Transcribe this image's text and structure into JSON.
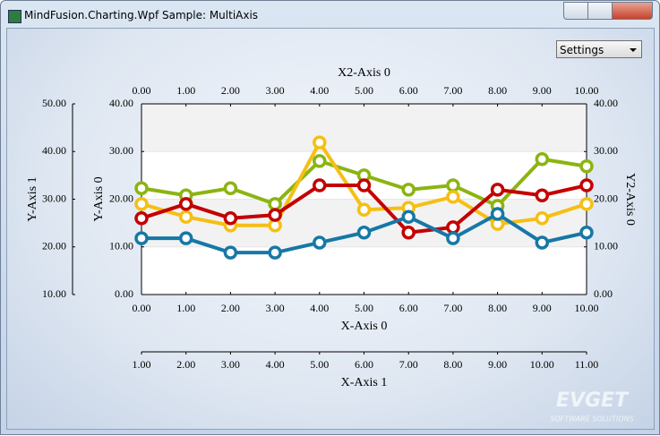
{
  "window": {
    "title": "MindFusion.Charting.Wpf Sample: MultiAxis"
  },
  "settings": {
    "label": "Settings"
  },
  "watermark": {
    "brand": "EVGET",
    "tagline": "SOFTWARE SOLUTIONS"
  },
  "chart_data": {
    "type": "line",
    "x": [
      0,
      1,
      2,
      3,
      4,
      5,
      6,
      7,
      8,
      9,
      10
    ],
    "series": [
      {
        "color": "#8cb411",
        "values": [
          22.3,
          20.8,
          22.3,
          19.0,
          28.0,
          25.0,
          22.0,
          22.9,
          18.6,
          28.4,
          26.9
        ]
      },
      {
        "color": "#f5bf14",
        "values": [
          19.0,
          16.3,
          14.5,
          14.5,
          31.9,
          17.8,
          18.2,
          20.5,
          14.8,
          16.0,
          19.0
        ]
      },
      {
        "color": "#c40000",
        "values": [
          16.0,
          19.0,
          16.0,
          16.7,
          22.9,
          22.9,
          13.0,
          14.1,
          22.0,
          20.8,
          22.9
        ]
      },
      {
        "color": "#1678a6",
        "values": [
          11.8,
          11.8,
          8.8,
          8.8,
          10.9,
          13.0,
          16.3,
          11.8,
          16.9,
          10.9,
          13.0
        ]
      }
    ],
    "x_label": "X-Axis 0",
    "xlim": [
      0,
      10
    ],
    "xticks": [
      {
        "value": 0,
        "label": "0.00"
      },
      {
        "value": 1,
        "label": "1.00"
      },
      {
        "value": 2,
        "label": "2.00"
      },
      {
        "value": 3,
        "label": "3.00"
      },
      {
        "value": 4,
        "label": "4.00"
      },
      {
        "value": 5,
        "label": "5.00"
      },
      {
        "value": 6,
        "label": "6.00"
      },
      {
        "value": 7,
        "label": "7.00"
      },
      {
        "value": 8,
        "label": "8.00"
      },
      {
        "value": 9,
        "label": "9.00"
      },
      {
        "value": 10,
        "label": "10.00"
      }
    ],
    "x2_label": "X2-Axis 0",
    "x2lim": [
      0,
      10
    ],
    "x2ticks": [
      {
        "value": 0,
        "label": "0.00"
      },
      {
        "value": 1,
        "label": "1.00"
      },
      {
        "value": 2,
        "label": "2.00"
      },
      {
        "value": 3,
        "label": "3.00"
      },
      {
        "value": 4,
        "label": "4.00"
      },
      {
        "value": 5,
        "label": "5.00"
      },
      {
        "value": 6,
        "label": "6.00"
      },
      {
        "value": 7,
        "label": "7.00"
      },
      {
        "value": 8,
        "label": "8.00"
      },
      {
        "value": 9,
        "label": "9.00"
      },
      {
        "value": 10,
        "label": "10.00"
      }
    ],
    "x3_label": "X-Axis 1",
    "x3lim": [
      1,
      11
    ],
    "x3ticks": [
      {
        "value": 1,
        "label": "1.00"
      },
      {
        "value": 2,
        "label": "2.00"
      },
      {
        "value": 3,
        "label": "3.00"
      },
      {
        "value": 4,
        "label": "4.00"
      },
      {
        "value": 5,
        "label": "5.00"
      },
      {
        "value": 6,
        "label": "6.00"
      },
      {
        "value": 7,
        "label": "7.00"
      },
      {
        "value": 8,
        "label": "8.00"
      },
      {
        "value": 9,
        "label": "9.00"
      },
      {
        "value": 10,
        "label": "10.00"
      },
      {
        "value": 11,
        "label": "11.00"
      }
    ],
    "y_label": "Y-Axis 0",
    "ylim": [
      0,
      40
    ],
    "yticks": [
      {
        "value": 0,
        "label": "0.00"
      },
      {
        "value": 10,
        "label": "10.00"
      },
      {
        "value": 20,
        "label": "20.00"
      },
      {
        "value": 30,
        "label": "30.00"
      },
      {
        "value": 40,
        "label": "40.00"
      }
    ],
    "y2_label": "Y2-Axis 0",
    "y2lim": [
      0,
      40
    ],
    "y2ticks": [
      {
        "value": 0,
        "label": "0.00"
      },
      {
        "value": 10,
        "label": "10.00"
      },
      {
        "value": 20,
        "label": "20.00"
      },
      {
        "value": 30,
        "label": "30.00"
      },
      {
        "value": 40,
        "label": "40.00"
      }
    ],
    "y3_label": "Y-Axis 1",
    "y3lim": [
      10,
      50
    ],
    "y3ticks": [
      {
        "value": 10,
        "label": "10.00"
      },
      {
        "value": 20,
        "label": "20.00"
      },
      {
        "value": 30,
        "label": "30.00"
      },
      {
        "value": 40,
        "label": "40.00"
      },
      {
        "value": 50,
        "label": "50.00"
      }
    ],
    "grid": true
  }
}
